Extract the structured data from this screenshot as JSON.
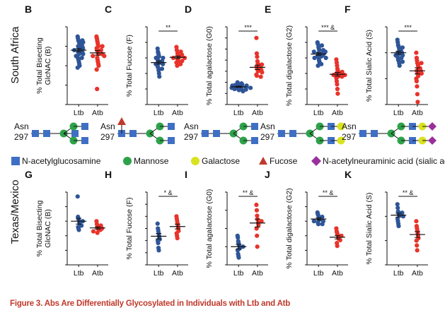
{
  "caption": {
    "label": "Figure 3.",
    "text": "Abs Are Differentially Glycosylated in Individuals with Ltb and Atb"
  },
  "row_labels": {
    "top": "South Africa",
    "bottom": "Texas/Mexico"
  },
  "colors": {
    "ltb": "#2e5597",
    "atb": "#e8332a",
    "glcnac": "#3f6fc4",
    "mannose": "#2ea24a",
    "galactose": "#d9e21f",
    "fucose": "#c0392b",
    "sialic": "#9b2f9b",
    "caption": "#c0392b"
  },
  "glycans": {
    "asn_label": "Asn",
    "num_label": "297"
  },
  "legend": {
    "glcnac": "N-acetylglucosamine",
    "mannose": "Mannose",
    "galactose": "Galactose",
    "fucose": "Fucose",
    "sialic": "N-acetylneuraminic acid (sialic acid)"
  },
  "chart_data": [
    {
      "type": "scatter",
      "panel": "B",
      "ylabel": "% Total Bisecting GlcNAC (B)",
      "categories": [
        "Ltb",
        "Atb"
      ],
      "ylim": [
        0,
        20
      ],
      "yticks": [
        0,
        5,
        10,
        15,
        20
      ],
      "significance": "",
      "series": [
        {
          "name": "Ltb",
          "values": [
            17.5,
            17,
            16.5,
            16.5,
            16,
            16,
            15.5,
            15.5,
            15,
            15,
            14.5,
            14.5,
            14,
            14,
            14,
            13.5,
            13.5,
            13,
            13,
            12.5,
            12,
            12,
            11.5,
            11,
            10.5,
            10,
            9.5
          ],
          "mean": 14.0,
          "sem": 0.4
        },
        {
          "name": "Atb",
          "values": [
            17.5,
            17,
            16.5,
            16,
            15.5,
            15,
            15,
            14.5,
            14,
            14,
            13.5,
            13,
            13,
            12.5,
            12.5,
            12,
            11.5,
            11,
            10.5,
            10,
            9,
            4
          ],
          "mean": 13.3,
          "sem": 0.6
        }
      ]
    },
    {
      "type": "scatter",
      "panel": "C",
      "ylabel": "% Total Fucose (F)",
      "categories": [
        "Ltb",
        "Atb"
      ],
      "ylim": [
        75,
        100
      ],
      "yticks": [
        75,
        80,
        85,
        90,
        95,
        100
      ],
      "significance": "**",
      "series": [
        {
          "name": "Ltb",
          "values": [
            93,
            92,
            91.5,
            91,
            90.5,
            90,
            90,
            89.5,
            89,
            89,
            88.5,
            88,
            88,
            87.5,
            87,
            86.5,
            86,
            85,
            84
          ],
          "mean": 88.5,
          "sem": 0.5
        },
        {
          "name": "Atb",
          "values": [
            93.5,
            92.5,
            92,
            91.5,
            91,
            91,
            90.5,
            90.5,
            90,
            90,
            89.5,
            89,
            89,
            88.5,
            88,
            87.5
          ],
          "mean": 90.2,
          "sem": 0.4
        }
      ]
    },
    {
      "type": "scatter",
      "panel": "D",
      "ylabel": "% Total agalactose (G0)",
      "categories": [
        "Ltb",
        "Atb"
      ],
      "ylim": [
        10,
        80
      ],
      "yticks": [
        10,
        20,
        30,
        40,
        50,
        60,
        70,
        80
      ],
      "significance": "***",
      "series": [
        {
          "name": "Ltb",
          "values": [
            30,
            29,
            28,
            28,
            27.5,
            27,
            27,
            26.5,
            26,
            26,
            25.5,
            25,
            25,
            24.5,
            24,
            24,
            23.5,
            23,
            22
          ],
          "mean": 26.0,
          "sem": 0.5
        },
        {
          "name": "Atb",
          "values": [
            70,
            56,
            53,
            49,
            47,
            46,
            45,
            44,
            43,
            42,
            41,
            40,
            39,
            37,
            36,
            35
          ],
          "mean": 43.5,
          "sem": 2.0
        }
      ]
    },
    {
      "type": "scatter",
      "panel": "E",
      "ylabel": "% Total digalactose (G2)",
      "categories": [
        "Ltb",
        "Atb"
      ],
      "ylim": [
        0,
        50
      ],
      "yticks": [
        0,
        10,
        20,
        30,
        40,
        50
      ],
      "significance": "*** &",
      "series": [
        {
          "name": "Ltb",
          "values": [
            40,
            39,
            38,
            37,
            36,
            35,
            35,
            34,
            34,
            33,
            33,
            32,
            32,
            31,
            31,
            30,
            30,
            29,
            28,
            27,
            26,
            25
          ],
          "mean": 32.5,
          "sem": 0.8
        },
        {
          "name": "Atb",
          "values": [
            29,
            27,
            25,
            23,
            22,
            21,
            21,
            20,
            20,
            19,
            19,
            18,
            18,
            17,
            15,
            13,
            10,
            7
          ],
          "mean": 19.5,
          "sem": 1.2
        }
      ]
    },
    {
      "type": "scatter",
      "panel": "F",
      "ylabel": "% Total Sialic Acid (S)",
      "categories": [
        "Ltb",
        "Atb"
      ],
      "ylim": [
        0,
        30
      ],
      "yticks": [
        0,
        10,
        20,
        30
      ],
      "significance": "***",
      "series": [
        {
          "name": "Ltb",
          "values": [
            25,
            24,
            23,
            22.5,
            22,
            21.5,
            21,
            20.5,
            20,
            20,
            19.5,
            19,
            19,
            18.5,
            18,
            17.5,
            17,
            16.5,
            16,
            15
          ],
          "mean": 20.0,
          "sem": 0.6
        },
        {
          "name": "Atb",
          "values": [
            20,
            18,
            17,
            16,
            16,
            15,
            14,
            14,
            13,
            13,
            12,
            12,
            11,
            10,
            9,
            7,
            4,
            1
          ],
          "mean": 13.0,
          "sem": 1.2
        }
      ]
    },
    {
      "type": "scatter",
      "panel": "G",
      "ylabel": "% Total Bisecting GlcNAC (B)",
      "categories": [
        "Ltb",
        "Atb"
      ],
      "ylim": [
        0,
        25
      ],
      "yticks": [
        0,
        5,
        10,
        15,
        20,
        25
      ],
      "significance": "",
      "series": [
        {
          "name": "Ltb",
          "values": [
            23.5,
            16.5,
            16,
            15.5,
            15,
            14.5,
            14,
            13.5,
            13,
            12.5,
            12
          ],
          "mean": 15.0,
          "sem": 1.0
        },
        {
          "name": "Atb",
          "values": [
            15,
            14,
            13.5,
            13,
            12.5,
            12.5,
            12,
            12,
            11.5,
            11
          ],
          "mean": 12.7,
          "sem": 0.4
        }
      ]
    },
    {
      "type": "scatter",
      "panel": "H",
      "ylabel": "% Total Fucose (F)",
      "categories": [
        "Ltb",
        "Atb"
      ],
      "ylim": [
        65,
        95
      ],
      "yticks": [
        65,
        70,
        75,
        80,
        85,
        90,
        95
      ],
      "significance": "* &",
      "series": [
        {
          "name": "Ltb",
          "values": [
            82,
            80,
            79,
            78,
            77,
            76,
            75.5,
            75,
            74,
            72,
            71
          ],
          "mean": 76.8,
          "sem": 1.1
        },
        {
          "name": "Atb",
          "values": [
            85,
            84,
            83,
            82,
            81,
            80,
            79,
            78,
            77,
            76
          ],
          "mean": 80.8,
          "sem": 1.0
        }
      ]
    },
    {
      "type": "scatter",
      "panel": "I",
      "ylabel": "% Total agalactose (G0)",
      "categories": [
        "Ltb",
        "Atb"
      ],
      "ylim": [
        10,
        50
      ],
      "yticks": [
        10,
        20,
        30,
        40,
        50
      ],
      "significance": "** &",
      "series": [
        {
          "name": "Ltb",
          "values": [
            26,
            25,
            23,
            22,
            21,
            20,
            19,
            18,
            16,
            15,
            14
          ],
          "mean": 20.0,
          "sem": 1.3
        },
        {
          "name": "Atb",
          "values": [
            43,
            40,
            37,
            35,
            34,
            33,
            32,
            30,
            26,
            20
          ],
          "mean": 33.0,
          "sem": 2.2
        }
      ]
    },
    {
      "type": "scatter",
      "panel": "J",
      "ylabel": "% Total digalactose (G2)",
      "categories": [
        "Ltb",
        "Atb"
      ],
      "ylim": [
        20,
        70
      ],
      "yticks": [
        20,
        30,
        40,
        50,
        60,
        70
      ],
      "significance": "** &",
      "series": [
        {
          "name": "Ltb",
          "values": [
            56,
            55,
            54,
            53,
            52,
            51,
            50,
            50,
            49,
            48,
            48
          ],
          "mean": 51.5,
          "sem": 0.8
        },
        {
          "name": "Atb",
          "values": [
            45,
            43,
            42,
            41,
            40,
            39,
            38,
            37,
            35,
            33
          ],
          "mean": 39.0,
          "sem": 1.2
        }
      ]
    },
    {
      "type": "scatter",
      "panel": "K",
      "ylabel": "% Total Sialic Acid (S)",
      "categories": [
        "Ltb",
        "Atb"
      ],
      "ylim": [
        20,
        50
      ],
      "yticks": [
        20,
        30,
        40,
        50
      ],
      "significance": "** &",
      "series": [
        {
          "name": "Ltb",
          "values": [
            45,
            43.5,
            42,
            41.5,
            41,
            40.5,
            40,
            39,
            38,
            37,
            36
          ],
          "mean": 40.5,
          "sem": 0.8
        },
        {
          "name": "Atb",
          "values": [
            38,
            36,
            35,
            34,
            33,
            32,
            31,
            30,
            28,
            26
          ],
          "mean": 32.5,
          "sem": 1.2
        }
      ]
    }
  ]
}
